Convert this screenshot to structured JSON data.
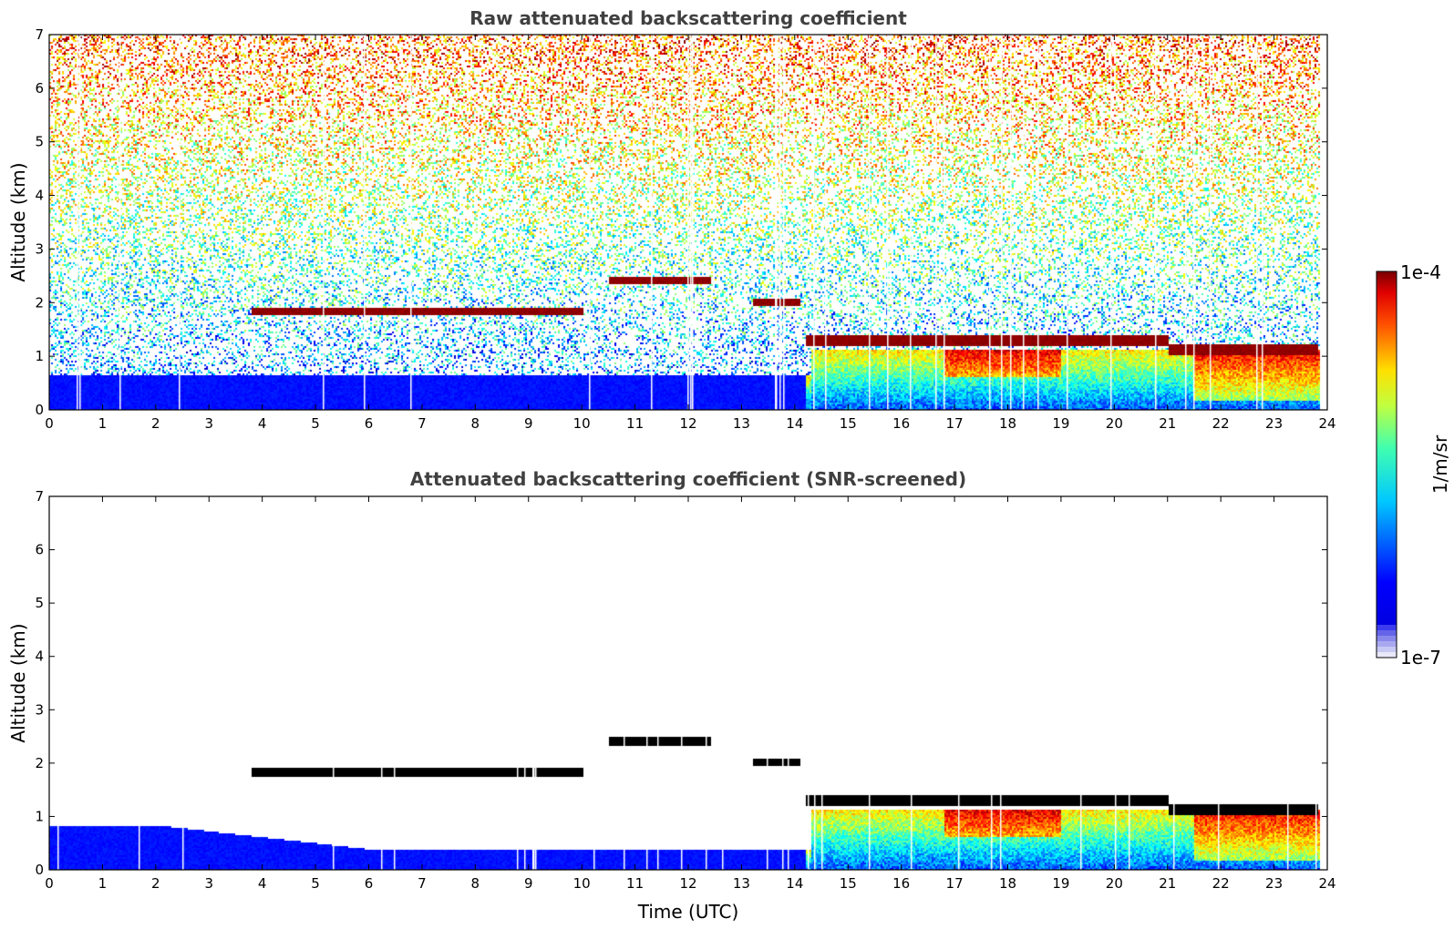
{
  "colorbar": {
    "max_label": "1e-4",
    "min_label": "1e-7",
    "unit_label": "1/m/sr",
    "colormap": "jet",
    "low_colors": [
      "#e8e8f8",
      "#c8c8f4",
      "#a8a8f0",
      "#8888ec",
      "#6464ea",
      "#3c3cee"
    ]
  },
  "chart_data": [
    {
      "type": "heatmap",
      "title": "Raw attenuated backscattering coefficient",
      "xlabel": "",
      "ylabel": "Altitude (km)",
      "xlim": [
        0,
        24
      ],
      "ylim": [
        0,
        7
      ],
      "xticks": [
        "0",
        "1",
        "2",
        "3",
        "4",
        "5",
        "6",
        "7",
        "8",
        "9",
        "10",
        "11",
        "12",
        "13",
        "14",
        "15",
        "16",
        "17",
        "18",
        "19",
        "20",
        "21",
        "22",
        "23",
        "24"
      ],
      "yticks": [
        "0",
        "1",
        "2",
        "3",
        "4",
        "5",
        "6",
        "7"
      ],
      "screened": false,
      "layers": [
        {
          "x0": 3.8,
          "x1": 10.0,
          "y": 1.85,
          "thickness": 0.15
        },
        {
          "x0": 10.5,
          "x1": 12.4,
          "y": 2.42,
          "thickness": 0.15
        },
        {
          "x0": 13.2,
          "x1": 14.1,
          "y": 2.03,
          "thickness": 0.15
        },
        {
          "x0": 14.2,
          "x1": 21.0,
          "y": 1.3,
          "thickness": 0.2
        },
        {
          "x0": 21.0,
          "x1": 23.8,
          "y": 1.15,
          "thickness": 0.2
        }
      ],
      "data_gap_start_x": 23.85
    },
    {
      "type": "heatmap",
      "title": "Attenuated backscattering coefficient (SNR-screened)",
      "xlabel": "Time (UTC)",
      "ylabel": "Altitude (km)",
      "xlim": [
        0,
        24
      ],
      "ylim": [
        0,
        7
      ],
      "xticks": [
        "0",
        "1",
        "2",
        "3",
        "4",
        "5",
        "6",
        "7",
        "8",
        "9",
        "10",
        "11",
        "12",
        "13",
        "14",
        "15",
        "16",
        "17",
        "18",
        "19",
        "20",
        "21",
        "22",
        "23",
        "24"
      ],
      "yticks": [
        "0",
        "1",
        "2",
        "3",
        "4",
        "5",
        "6",
        "7"
      ],
      "screened": true,
      "layers": [
        {
          "x0": 3.8,
          "x1": 10.0,
          "y": 1.85,
          "thickness": 0.15
        },
        {
          "x0": 10.5,
          "x1": 12.4,
          "y": 2.42,
          "thickness": 0.15
        },
        {
          "x0": 13.2,
          "x1": 14.1,
          "y": 2.03,
          "thickness": 0.15
        },
        {
          "x0": 14.2,
          "x1": 21.0,
          "y": 1.3,
          "thickness": 0.2
        },
        {
          "x0": 21.0,
          "x1": 23.8,
          "y": 1.15,
          "thickness": 0.2
        }
      ],
      "data_gap_start_x": 23.85
    }
  ]
}
